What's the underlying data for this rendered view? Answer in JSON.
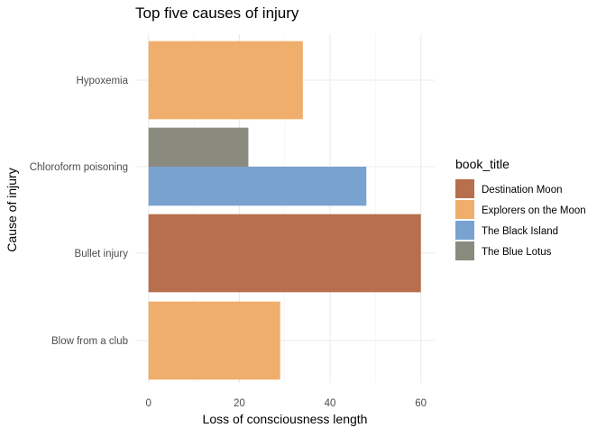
{
  "chart_data": {
    "type": "bar",
    "orientation": "horizontal",
    "position": "dodge",
    "title": "Top five causes of injury",
    "xlabel": "Loss of consciousness length",
    "ylabel": "Cause of injury",
    "xlim": [
      0,
      63
    ],
    "xticks": [
      0,
      20,
      40,
      60
    ],
    "grid": true,
    "categories": [
      "Hypoxemia",
      "Chloroform poisoning",
      "Bullet injury",
      "Blow from a club"
    ],
    "legend": {
      "title": "book_title",
      "placement": "right",
      "entries": [
        {
          "name": "Destination Moon",
          "color": "#b86f4d"
        },
        {
          "name": "Explorers on the Moon",
          "color": "#efae6b"
        },
        {
          "name": "The Black Island",
          "color": "#79a2d0"
        },
        {
          "name": "The Blue Lotus",
          "color": "#8a8a7e"
        }
      ]
    },
    "bars": [
      {
        "category": "Hypoxemia",
        "series": "Explorers on the Moon",
        "value": 34
      },
      {
        "category": "Chloroform poisoning",
        "series": "The Blue Lotus",
        "value": 22
      },
      {
        "category": "Chloroform poisoning",
        "series": "The Black Island",
        "value": 48
      },
      {
        "category": "Bullet injury",
        "series": "Destination Moon",
        "value": 60
      },
      {
        "category": "Blow from a club",
        "series": "Explorers on the Moon",
        "value": 29
      }
    ]
  }
}
